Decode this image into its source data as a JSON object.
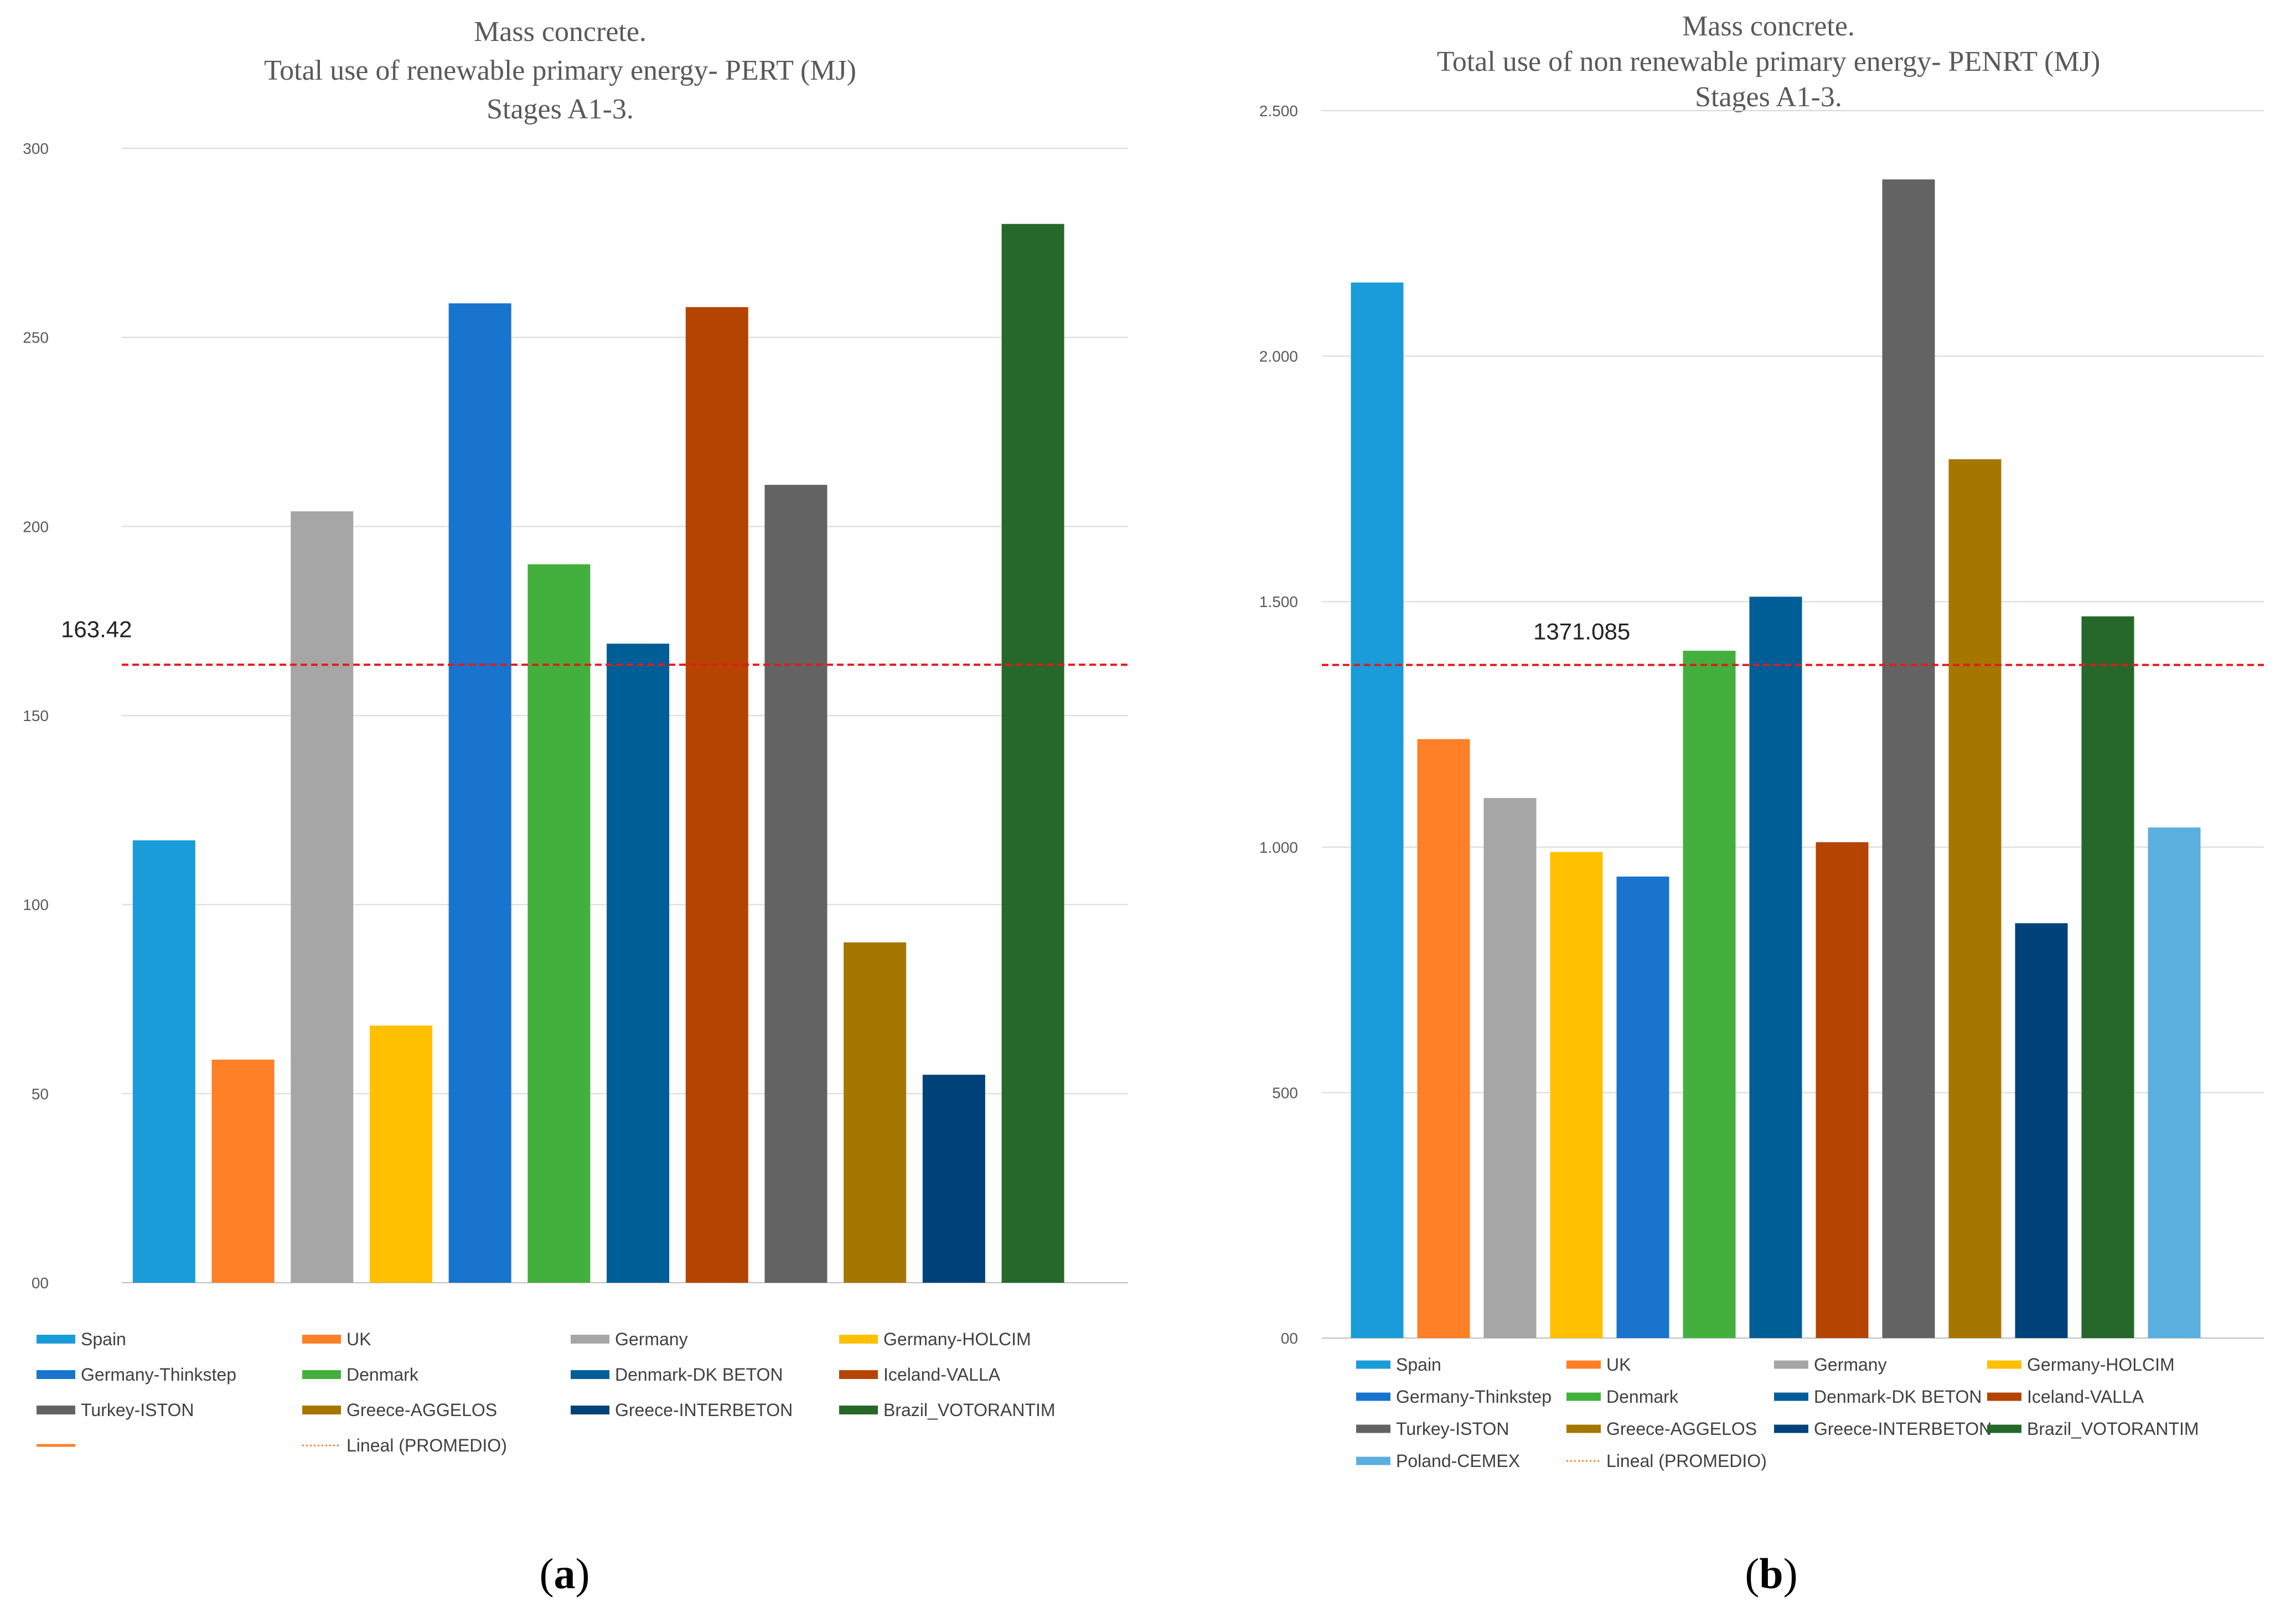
{
  "chart_data": [
    {
      "id": "a",
      "type": "bar",
      "title_lines": [
        "Mass concrete.",
        "Total use of renewable primary energy- PERT (MJ)",
        "Stages A1-3."
      ],
      "categories": [
        "Spain",
        "UK",
        "Germany",
        "Germany-HOLCIM",
        "Germany-Thinkstep",
        "Denmark",
        "Denmark-DK BETON",
        "Iceland-VALLA",
        "Turkey-ISTON",
        "Greece-AGGELOS",
        "Greece-INTERBETON",
        "Brazil_VOTORANTIM"
      ],
      "values": [
        117,
        59,
        204,
        68,
        259,
        190,
        169,
        258,
        211,
        90,
        55,
        280
      ],
      "colors": [
        "#1a9cd8",
        "#fd7f26",
        "#a6a6a6",
        "#ffc000",
        "#1874cd",
        "#43b03e",
        "#005e96",
        "#b54400",
        "#636363",
        "#a67700",
        "#00427a",
        "#26672a"
      ],
      "ylim": [
        0,
        300
      ],
      "yticks": [
        0,
        50,
        100,
        150,
        200,
        250,
        300
      ],
      "ytick_labels": [
        "00",
        "50",
        "100",
        "150",
        "200",
        "250",
        "300"
      ],
      "xlabel": "",
      "ylabel": "",
      "grid": true,
      "average": {
        "value": 163.42,
        "label": "163.42",
        "color": "#e31a1c"
      },
      "legend_position": "bottom",
      "legend_entries": [
        {
          "label": "Spain",
          "color": "#1a9cd8",
          "style": "box"
        },
        {
          "label": "UK",
          "color": "#fd7f26",
          "style": "box"
        },
        {
          "label": "Germany",
          "color": "#a6a6a6",
          "style": "box"
        },
        {
          "label": "Germany-HOLCIM",
          "color": "#ffc000",
          "style": "box"
        },
        {
          "label": "Germany-Thinkstep",
          "color": "#1874cd",
          "style": "box"
        },
        {
          "label": "Denmark",
          "color": "#43b03e",
          "style": "box"
        },
        {
          "label": "Denmark-DK BETON",
          "color": "#005e96",
          "style": "box"
        },
        {
          "label": "Iceland-VALLA",
          "color": "#b54400",
          "style": "box"
        },
        {
          "label": "Turkey-ISTON",
          "color": "#636363",
          "style": "box"
        },
        {
          "label": "Greece-AGGELOS",
          "color": "#a67700",
          "style": "box"
        },
        {
          "label": "Greece-INTERBETON",
          "color": "#00427a",
          "style": "box"
        },
        {
          "label": "Brazil_VOTORANTIM",
          "color": "#26672a",
          "style": "box"
        },
        {
          "label": "",
          "color": "#fd7f26",
          "style": "line"
        },
        {
          "label": "Lineal (PROMEDIO)",
          "color": "#fd7f26",
          "style": "dotted"
        }
      ],
      "caption_label": "a"
    },
    {
      "id": "b",
      "type": "bar",
      "title_lines": [
        "Mass concrete.",
        "Total use of non renewable primary energy- PENRT (MJ)",
        "Stages A1-3."
      ],
      "categories": [
        "Spain",
        "UK",
        "Germany",
        "Germany-HOLCIM",
        "Germany-Thinkstep",
        "Denmark",
        "Denmark-DK BETON",
        "Iceland-VALLA",
        "Turkey-ISTON",
        "Greece-AGGELOS",
        "Greece-INTERBETON",
        "Brazil_VOTORANTIM",
        "Poland-CEMEX"
      ],
      "values": [
        2150,
        1220,
        1100,
        990,
        940,
        1400,
        1510,
        1010,
        2360,
        1790,
        845,
        1470,
        1040
      ],
      "colors": [
        "#1a9cd8",
        "#fd7f26",
        "#a6a6a6",
        "#ffc000",
        "#1874cd",
        "#43b03e",
        "#005e96",
        "#b54400",
        "#636363",
        "#a67700",
        "#00427a",
        "#26672a",
        "#5bafdf"
      ],
      "ylim": [
        0,
        2500
      ],
      "yticks": [
        0,
        500,
        1000,
        1500,
        2000,
        2500
      ],
      "ytick_labels": [
        "00",
        "500",
        "1.000",
        "1.500",
        "2.000",
        "2.500"
      ],
      "xlabel": "",
      "ylabel": "",
      "grid": true,
      "average": {
        "value": 1371.085,
        "label": "1371.085",
        "color": "#e31a1c"
      },
      "legend_position": "bottom",
      "legend_entries": [
        {
          "label": "Spain",
          "color": "#1a9cd8",
          "style": "box"
        },
        {
          "label": "UK",
          "color": "#fd7f26",
          "style": "box"
        },
        {
          "label": "Germany",
          "color": "#a6a6a6",
          "style": "box"
        },
        {
          "label": "Germany-HOLCIM",
          "color": "#ffc000",
          "style": "box"
        },
        {
          "label": "Germany-Thinkstep",
          "color": "#1874cd",
          "style": "box"
        },
        {
          "label": "Denmark",
          "color": "#43b03e",
          "style": "box"
        },
        {
          "label": "Denmark-DK BETON",
          "color": "#005e96",
          "style": "box"
        },
        {
          "label": "Iceland-VALLA",
          "color": "#b54400",
          "style": "box"
        },
        {
          "label": "Turkey-ISTON",
          "color": "#636363",
          "style": "box"
        },
        {
          "label": "Greece-AGGELOS",
          "color": "#a67700",
          "style": "box"
        },
        {
          "label": "Greece-INTERBETON",
          "color": "#00427a",
          "style": "box"
        },
        {
          "label": "Brazil_VOTORANTIM",
          "color": "#26672a",
          "style": "box"
        },
        {
          "label": "Poland-CEMEX",
          "color": "#5bafdf",
          "style": "box"
        },
        {
          "label": "Lineal (PROMEDIO)",
          "color": "#fd7f26",
          "style": "dotted"
        }
      ],
      "caption_label": "b"
    }
  ]
}
